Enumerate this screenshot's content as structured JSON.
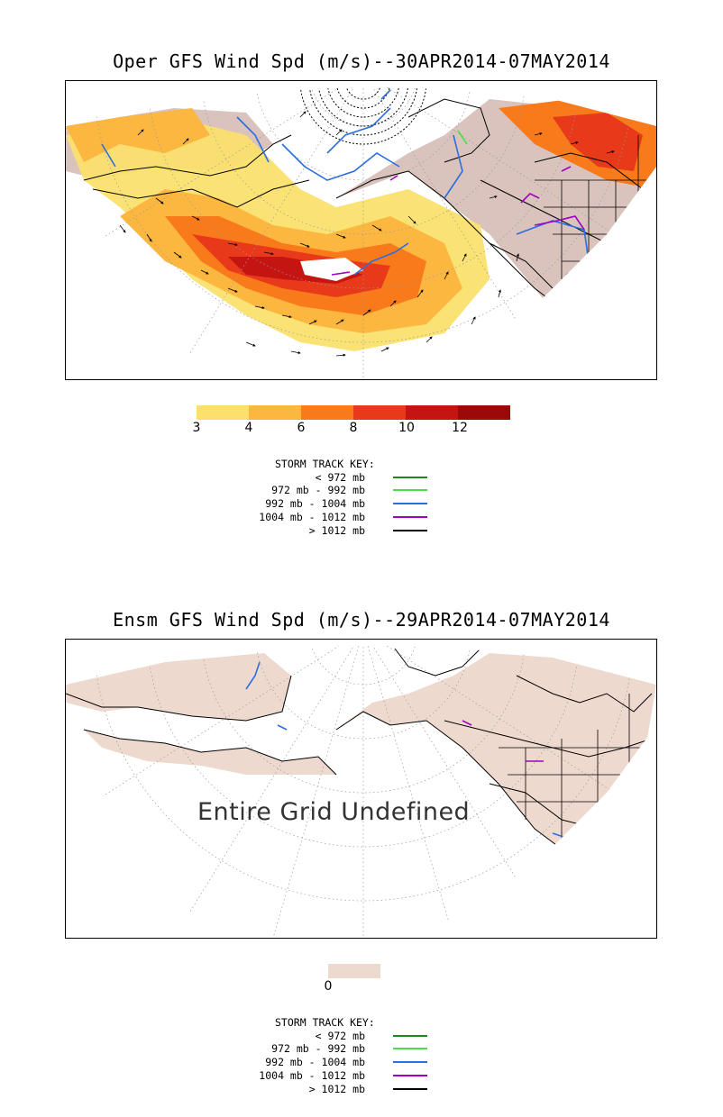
{
  "panel1": {
    "title": "Oper GFS Wind Spd (m/s)--30APR2014-07MAY2014",
    "colorbar": {
      "colors": [
        "#fbe06e",
        "#fbb73f",
        "#f97a1b",
        "#e8391a",
        "#c41512",
        "#9b0909"
      ],
      "ticks": [
        "3",
        "4",
        "6",
        "8",
        "10",
        "12"
      ]
    },
    "storm_key": {
      "title": "STORM TRACK KEY:",
      "rows": [
        {
          "label": "< 972 mb",
          "color": "#1a8a1a"
        },
        {
          "label": "972 mb -  992 mb",
          "color": "#4be04b"
        },
        {
          "label": "992 mb - 1004 mb",
          "color": "#2a6ee0"
        },
        {
          "label": "1004 mb - 1012 mb",
          "color": "#a000c0"
        },
        {
          "label": "> 1012 mb",
          "color": "#000000"
        }
      ]
    }
  },
  "panel2": {
    "title": "Ensm GFS Wind Spd (m/s)--29APR2014-07MAY2014",
    "overlay_text": "Entire Grid Undefined",
    "colorbar": {
      "colors": [
        "#eed9cf"
      ],
      "ticks": [
        "0"
      ]
    },
    "storm_key": {
      "title": "STORM TRACK KEY:",
      "rows": [
        {
          "label": "< 972 mb",
          "color": "#1a8a1a"
        },
        {
          "label": "972 mb -  992 mb",
          "color": "#4be04b"
        },
        {
          "label": "992 mb - 1004 mb",
          "color": "#2a6ee0"
        },
        {
          "label": "1004 mb - 1012 mb",
          "color": "#a000c0"
        },
        {
          "label": "> 1012 mb",
          "color": "#000000"
        }
      ]
    }
  },
  "colors": {
    "land": "#d9c3bc",
    "land_light": "#eed9cf",
    "track_blue": "#2a6ee0",
    "track_purple": "#a000c0"
  }
}
